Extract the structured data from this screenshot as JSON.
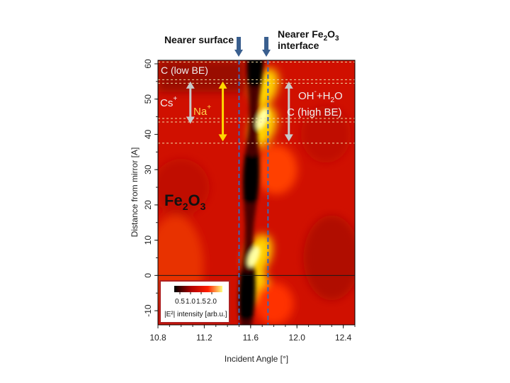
{
  "chart_data": {
    "type": "heatmap",
    "title": "",
    "xlabel": "Incident Angle [°]",
    "ylabel": "Distance from mirror [A]",
    "xlim": [
      10.8,
      12.5
    ],
    "ylim": [
      -14,
      61
    ],
    "x_ticks": [
      "10.8",
      "11.2",
      "11.6",
      "12.0",
      "12.4"
    ],
    "y_ticks": [
      "-10",
      "0",
      "10",
      "20",
      "30",
      "40",
      "50",
      "60"
    ],
    "colorbar": {
      "ticks": [
        "0.5",
        "1.0",
        "1.5",
        "2.0"
      ],
      "label": "|E²| intensity [arb.u.]",
      "colors": [
        "#000000",
        "#b00000",
        "#ff2000",
        "#ffff80"
      ]
    },
    "interference_bands": [
      {
        "name": "dark",
        "x_at_top": 11.64,
        "x_at_bottom": 11.56,
        "period": 33
      },
      {
        "name": "bright",
        "x_at_top": 11.76,
        "x_at_bottom": 11.62,
        "period": 33
      }
    ],
    "vertical_markers": [
      {
        "x": 11.5,
        "label": "Nearer surface"
      },
      {
        "x": 11.75,
        "label_line1": "Nearer Fe",
        "label_sub": "2",
        "label_mid": "O",
        "label_sub2": "3",
        "label_line2": "interface"
      }
    ],
    "horizontal_lines": [
      {
        "y": 60.5,
        "style": "dashed"
      },
      {
        "y": 55.5,
        "style": "dashed"
      },
      {
        "y": 54.5,
        "style": "dashed"
      },
      {
        "y": 44.5,
        "style": "dashed"
      },
      {
        "y": 43.5,
        "style": "dashed"
      },
      {
        "y": 37.5,
        "style": "dashed"
      },
      {
        "y": 0,
        "style": "solid"
      }
    ],
    "annotations": {
      "c_low": "C (low BE)",
      "cs": "Cs",
      "cs_sup": "+",
      "na": "Na",
      "na_sup": "+",
      "oh": "OH",
      "oh_sup": "-",
      "h2o_a": "+H",
      "h2o_sub": "2",
      "h2o_b": "O",
      "c_high": "C (high BE)",
      "fe": "Fe",
      "fe_sub": "2",
      "o": "O",
      "o_sub": "3"
    },
    "ranges": [
      {
        "name": "cs",
        "y": [
          43,
          55
        ],
        "color": "#c8c8c8"
      },
      {
        "name": "na",
        "y": [
          38,
          55
        ],
        "color": "#ffd700"
      },
      {
        "name": "oh",
        "y": [
          38,
          55
        ],
        "color": "#c8c8c8"
      }
    ]
  }
}
